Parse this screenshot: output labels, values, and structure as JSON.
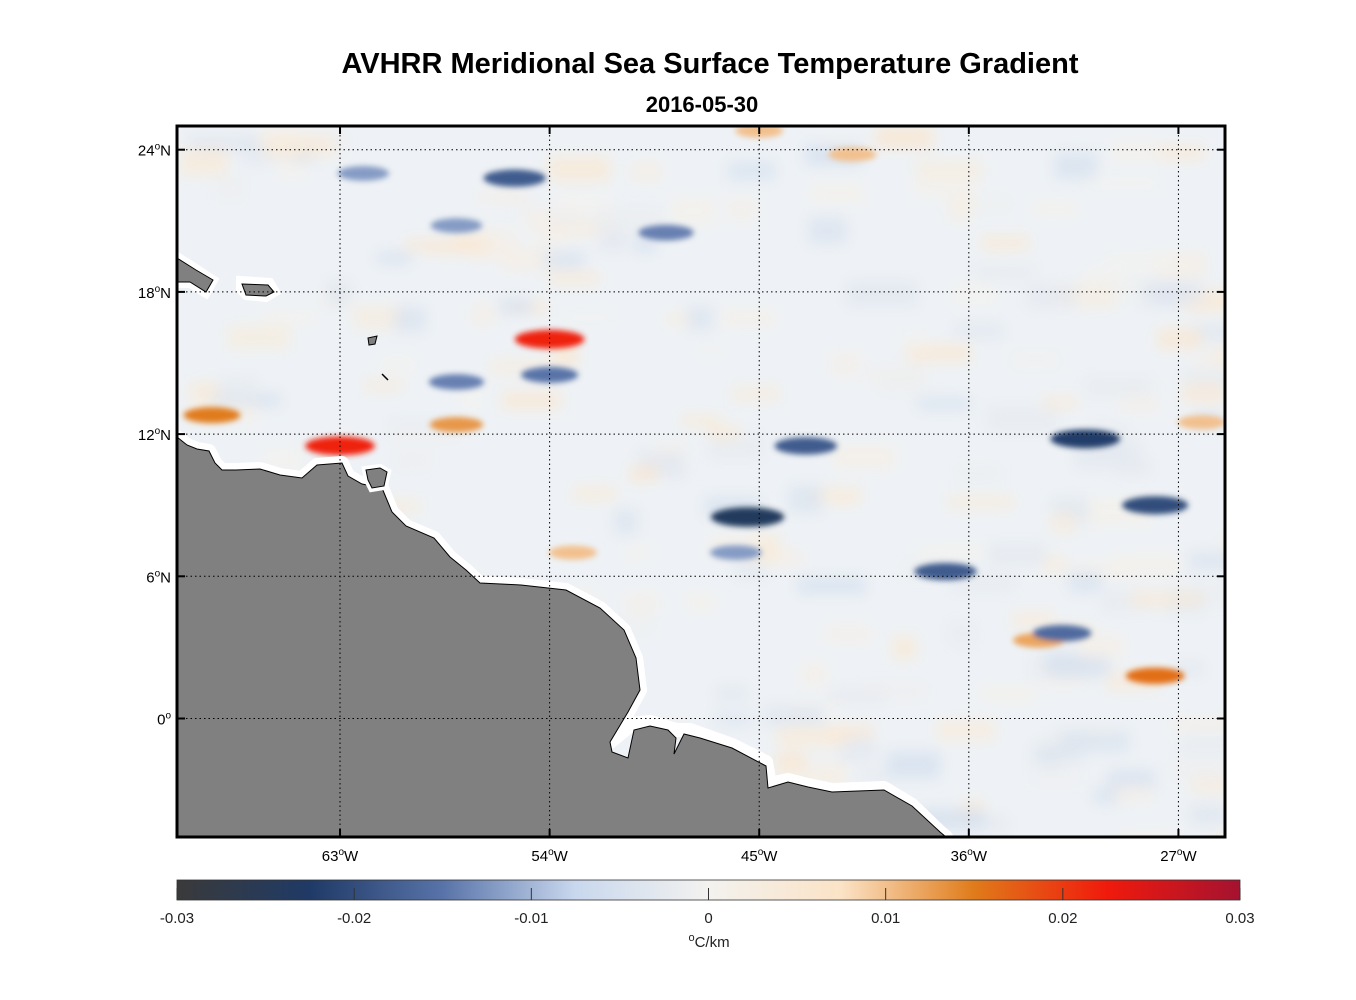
{
  "title": "AVHRR Meridional Sea Surface Temperature Gradient",
  "subtitle": "2016-05-30",
  "map": {
    "region": {
      "lon": [
        -70,
        -25
      ],
      "lat": [
        -5,
        25
      ]
    },
    "lon_ticks": [
      {
        "value": -63,
        "text": "63",
        "deg": "o",
        "hemi": "W"
      },
      {
        "value": -54,
        "text": "54",
        "deg": "o",
        "hemi": "W"
      },
      {
        "value": -45,
        "text": "45",
        "deg": "o",
        "hemi": "W"
      },
      {
        "value": -36,
        "text": "36",
        "deg": "o",
        "hemi": "W"
      },
      {
        "value": -27,
        "text": "27",
        "deg": "o",
        "hemi": "W"
      }
    ],
    "lat_ticks": [
      {
        "value": 24,
        "text": "24",
        "deg": "o",
        "hemi": "N"
      },
      {
        "value": 18,
        "text": "18",
        "deg": "o",
        "hemi": "N"
      },
      {
        "value": 12,
        "text": "12",
        "deg": "o",
        "hemi": "N"
      },
      {
        "value": 6,
        "text": "6",
        "deg": "o",
        "hemi": "N"
      },
      {
        "value": 0,
        "text": "0",
        "deg": "o",
        "hemi": ""
      }
    ],
    "grid": true,
    "land_color": "#808080",
    "ocean_color": "#eef2f6"
  },
  "colorbar": {
    "ticks": [
      {
        "value": -0.03,
        "label": "-0.03"
      },
      {
        "value": -0.02,
        "label": "-0.02"
      },
      {
        "value": -0.01,
        "label": "-0.01"
      },
      {
        "value": 0,
        "label": "0"
      },
      {
        "value": 0.01,
        "label": "0.01"
      },
      {
        "value": 0.02,
        "label": "0.02"
      },
      {
        "value": 0.03,
        "label": "0.03"
      }
    ],
    "range": [
      -0.03,
      0.03
    ],
    "unit_deg": "o",
    "unit": "C/km",
    "stops": [
      "#3a3a3a",
      "#1f3a66",
      "#5873a8",
      "#c9d8ee",
      "#f3f2ef",
      "#fbe3c6",
      "#e07b1a",
      "#f01a0c",
      "#a51230"
    ]
  },
  "chart_data": {
    "type": "heatmap",
    "title": "AVHRR Meridional Sea Surface Temperature Gradient",
    "subtitle": "2016-05-30",
    "xlabel": "",
    "ylabel": "",
    "xlim": [
      -70,
      -25
    ],
    "ylim": [
      -5,
      25
    ],
    "clim": [
      -0.03,
      0.03
    ],
    "colorbar_label": "°C/km",
    "features": [
      {
        "lon": -63,
        "lat": 11.5,
        "value": 0.022
      },
      {
        "lon": -54,
        "lat": 16.0,
        "value": 0.022
      },
      {
        "lon": -68.5,
        "lat": 12.8,
        "value": 0.015
      },
      {
        "lon": -58,
        "lat": 12.4,
        "value": 0.013
      },
      {
        "lon": -53,
        "lat": 7.0,
        "value": 0.01
      },
      {
        "lon": -45,
        "lat": 24.8,
        "value": 0.01
      },
      {
        "lon": -41,
        "lat": 23.8,
        "value": 0.01
      },
      {
        "lon": -33,
        "lat": 3.3,
        "value": 0.012
      },
      {
        "lon": -28,
        "lat": 1.8,
        "value": 0.016
      },
      {
        "lon": -26,
        "lat": 12.5,
        "value": 0.01
      },
      {
        "lon": -45.5,
        "lat": 8.5,
        "value": -0.024
      },
      {
        "lon": -55.5,
        "lat": 22.8,
        "value": -0.018
      },
      {
        "lon": -43,
        "lat": 11.5,
        "value": -0.018
      },
      {
        "lon": -31,
        "lat": 11.8,
        "value": -0.022
      },
      {
        "lon": -28,
        "lat": 9.0,
        "value": -0.02
      },
      {
        "lon": -32,
        "lat": 3.6,
        "value": -0.016
      },
      {
        "lon": -37,
        "lat": 6.2,
        "value": -0.018
      },
      {
        "lon": -54,
        "lat": 14.5,
        "value": -0.015
      },
      {
        "lon": -58,
        "lat": 14.2,
        "value": -0.014
      },
      {
        "lon": -46,
        "lat": 7.0,
        "value": -0.012
      },
      {
        "lon": -62,
        "lat": 23.0,
        "value": -0.012
      },
      {
        "lon": -49,
        "lat": 20.5,
        "value": -0.014
      },
      {
        "lon": -58,
        "lat": 20.8,
        "value": -0.012
      }
    ]
  }
}
